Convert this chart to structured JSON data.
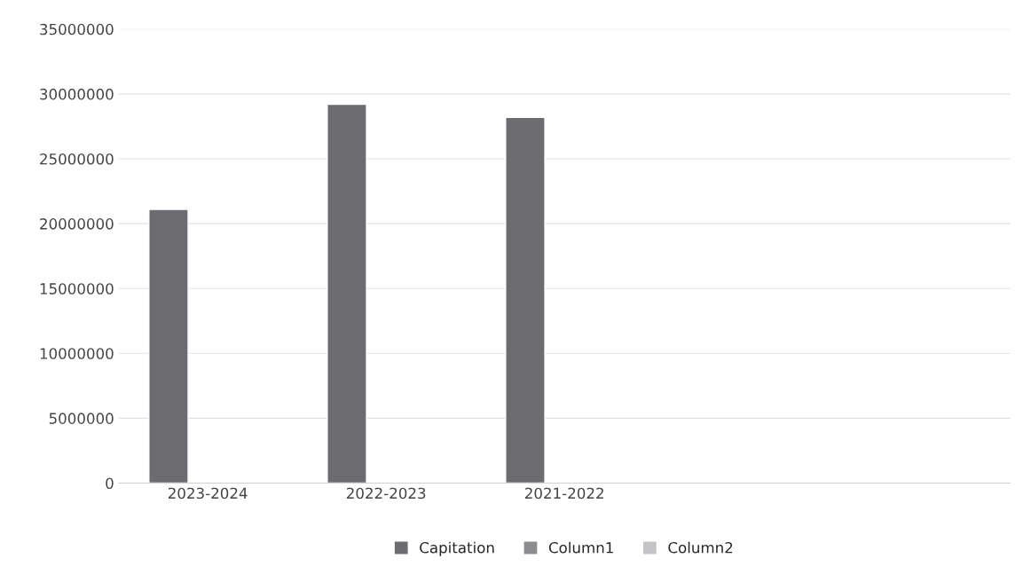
{
  "chart_data": {
    "type": "bar",
    "categories": [
      "2023-2024",
      "2022-2023",
      "2021-2022",
      null,
      null
    ],
    "series": [
      {
        "name": "Capitation",
        "color": "#6b6b70",
        "values": [
          21100000,
          29200000,
          28200000,
          null,
          null
        ]
      },
      {
        "name": "Column1",
        "color": "#8c8c8f",
        "values": [
          null,
          null,
          null,
          null,
          null
        ]
      },
      {
        "name": "Column2",
        "color": "#c4c4c6",
        "values": [
          null,
          null,
          null,
          null,
          null
        ]
      }
    ],
    "ylim": [
      0,
      35000000
    ],
    "yticks": [
      0,
      5000000,
      10000000,
      15000000,
      20000000,
      25000000,
      30000000,
      35000000
    ],
    "grid": "y",
    "legend": "bottom"
  }
}
